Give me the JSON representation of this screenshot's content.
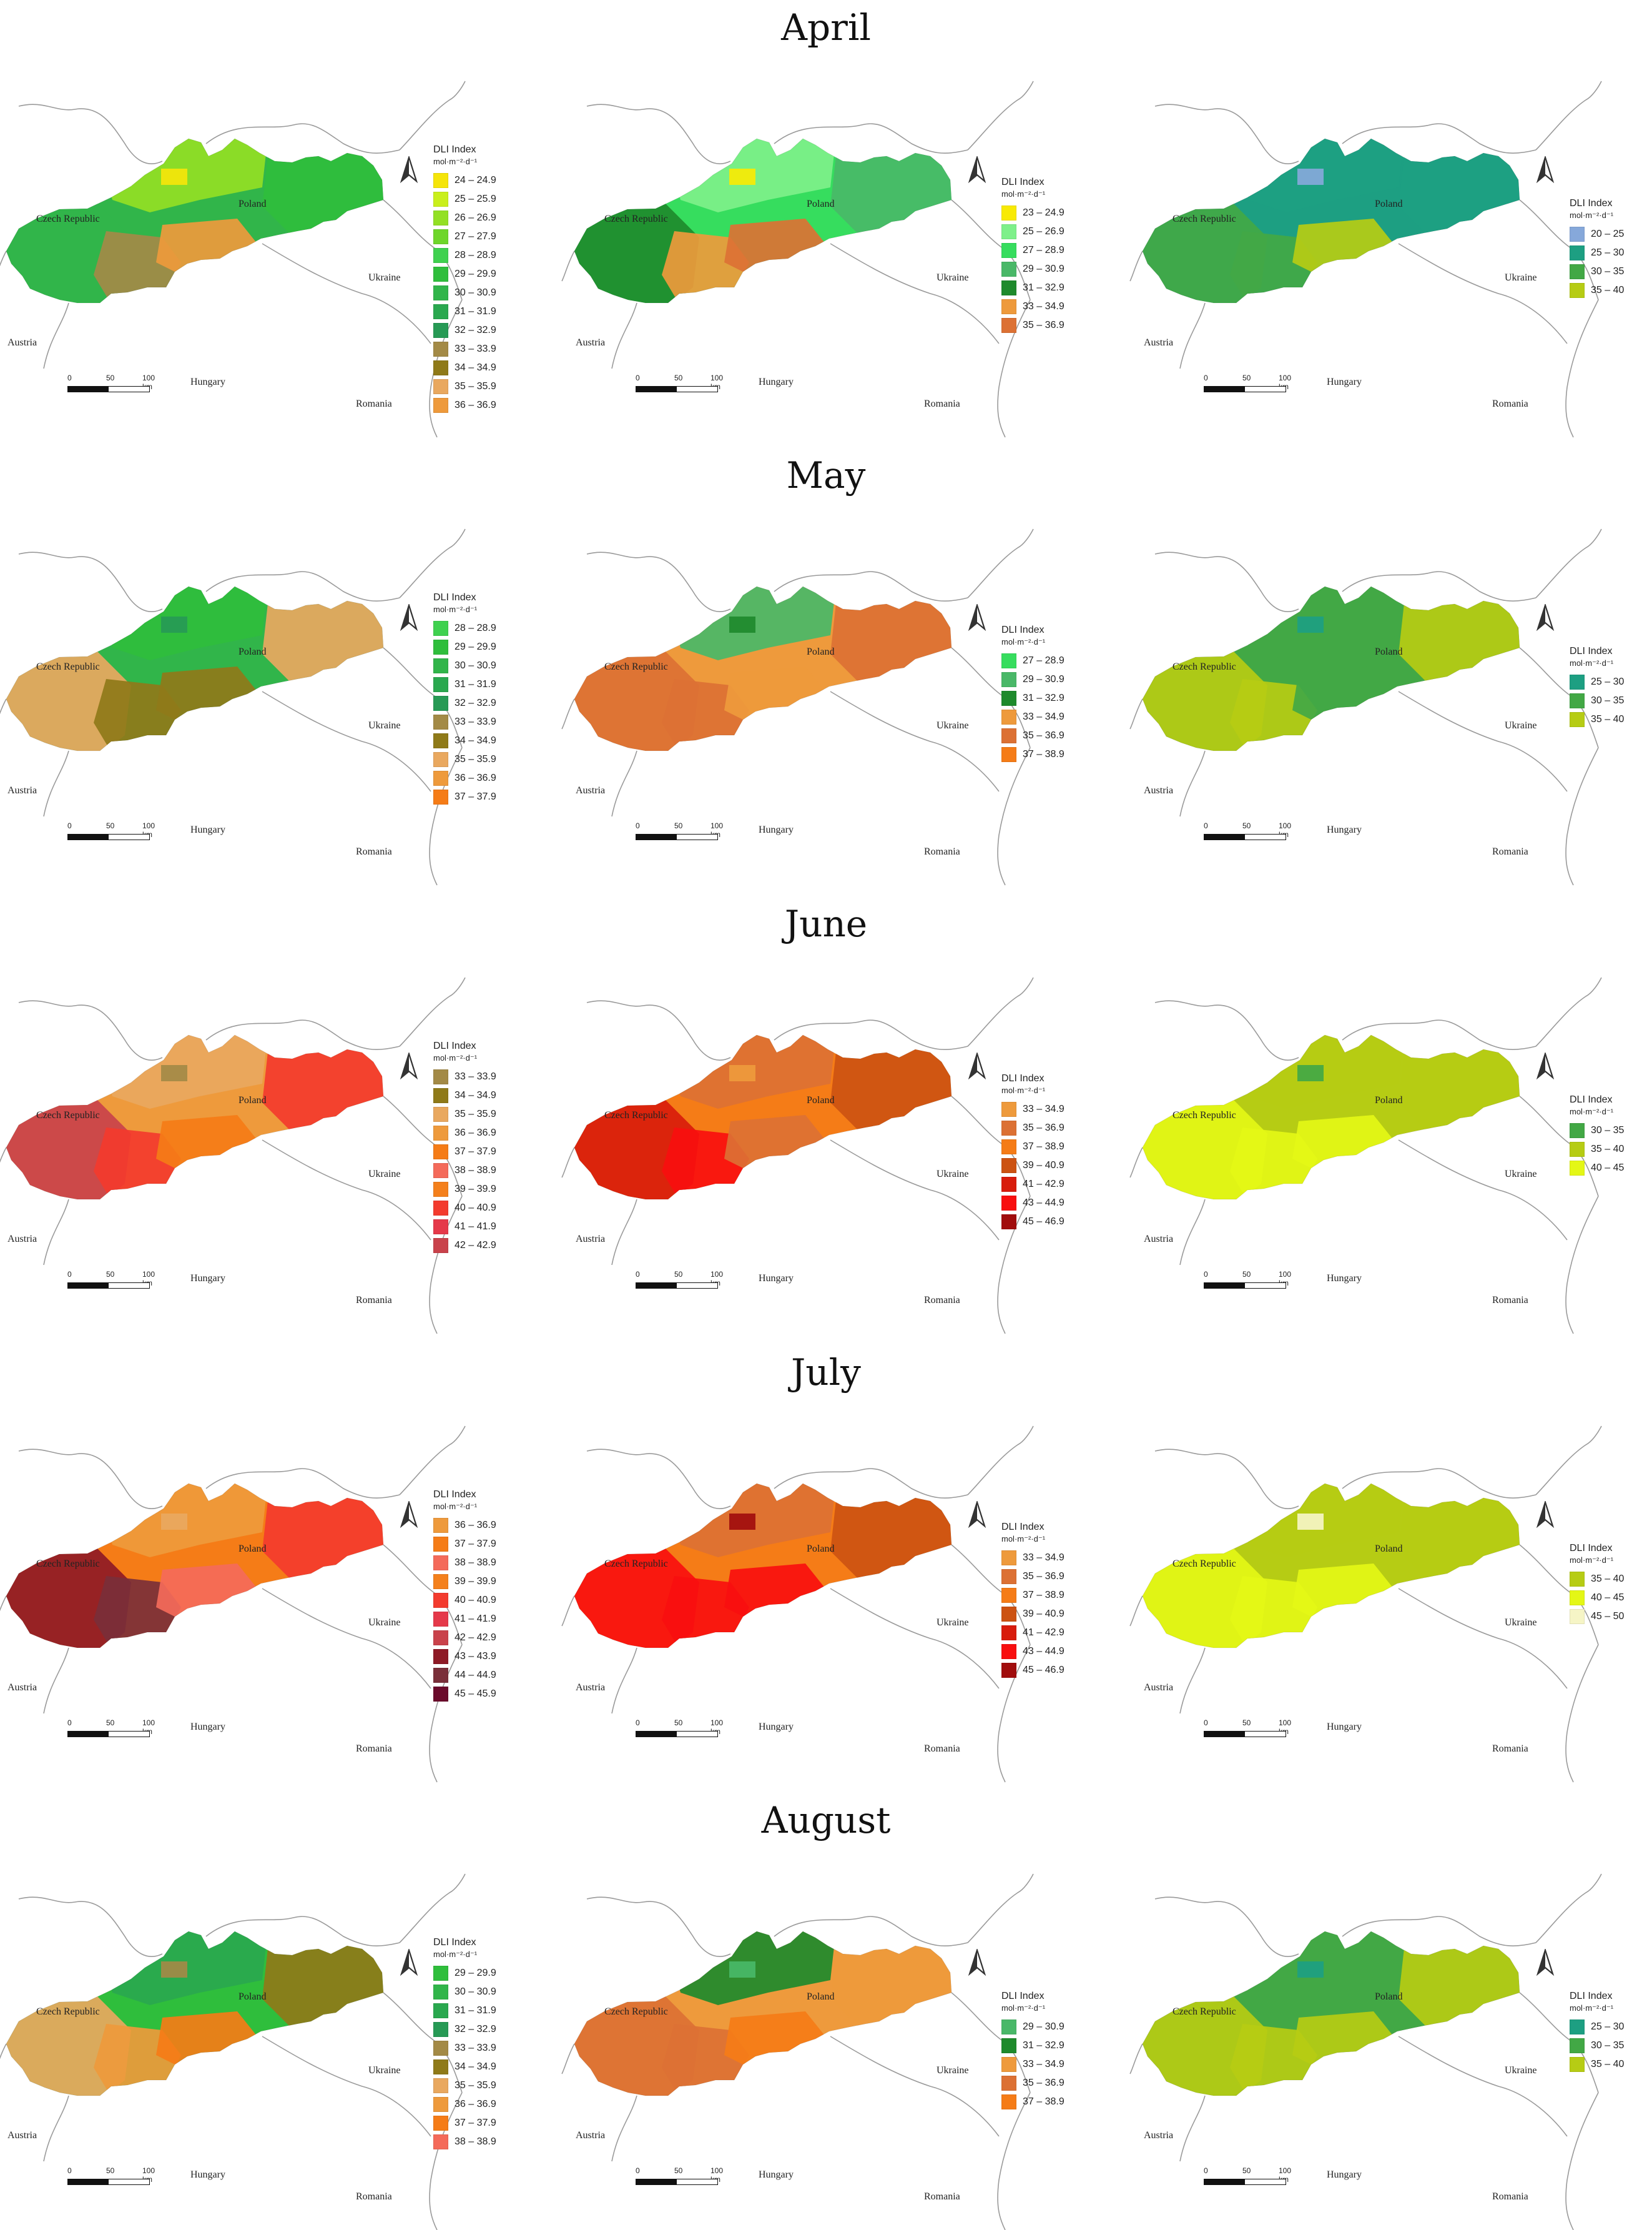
{
  "legend_title": "DLI Index",
  "legend_unit": "mol·m⁻²·d⁻¹",
  "place_labels": {
    "poland": "Poland",
    "czech": "Czech Republic",
    "ukraine": "Ukraine",
    "austria": "Austria",
    "hungary": "Hungary",
    "romania": "Romania"
  },
  "scale_labels": {
    "zero": "0",
    "fifty": "50",
    "hundred": "100 km"
  },
  "months": [
    {
      "title": "April",
      "panels": [
        {
          "legend": [
            {
              "label": "24 – 24.9",
              "color": "#f5e50a"
            },
            {
              "label": "25 – 25.9",
              "color": "#c9ef1c"
            },
            {
              "label": "26 – 26.9",
              "color": "#93e024"
            },
            {
              "label": "27 – 27.9",
              "color": "#6ed62a"
            },
            {
              "label": "28 – 28.9",
              "color": "#3fd14f"
            },
            {
              "label": "29 – 29.9",
              "color": "#2fbe3c"
            },
            {
              "label": "30 – 30.9",
              "color": "#31b54a"
            },
            {
              "label": "31 – 31.9",
              "color": "#2aa84f"
            },
            {
              "label": "32 – 32.9",
              "color": "#279a55"
            },
            {
              "label": "33 – 33.9",
              "color": "#a38a46"
            },
            {
              "label": "34 – 34.9",
              "color": "#8f7a19"
            },
            {
              "label": "35 – 35.9",
              "color": "#e9a85f"
            },
            {
              "label": "36 – 36.9",
              "color": "#ee9a3c"
            }
          ]
        },
        {
          "legend": [
            {
              "label": "23 – 24.9",
              "color": "#f8ea04"
            },
            {
              "label": "25 – 26.9",
              "color": "#7ef08a"
            },
            {
              "label": "27 – 28.9",
              "color": "#36dd5e"
            },
            {
              "label": "29 – 30.9",
              "color": "#49b868"
            },
            {
              "label": "31 – 32.9",
              "color": "#1e8a2c"
            },
            {
              "label": "33 – 34.9",
              "color": "#ee9a3c"
            },
            {
              "label": "35 – 36.9",
              "color": "#dc7134"
            }
          ]
        },
        {
          "legend": [
            {
              "label": "20 – 25",
              "color": "#86a8da"
            },
            {
              "label": "25 – 30",
              "color": "#1d9f82"
            },
            {
              "label": "30 – 35",
              "color": "#42a845"
            },
            {
              "label": "35 – 40",
              "color": "#b6cc14"
            }
          ]
        }
      ]
    },
    {
      "title": "May",
      "panels": [
        {
          "legend": [
            {
              "label": "28 – 28.9",
              "color": "#3fd14f"
            },
            {
              "label": "29 – 29.9",
              "color": "#2fbe3c"
            },
            {
              "label": "30 – 30.9",
              "color": "#31b54a"
            },
            {
              "label": "31 – 31.9",
              "color": "#2aa84f"
            },
            {
              "label": "32 – 32.9",
              "color": "#279a55"
            },
            {
              "label": "33 – 33.9",
              "color": "#a38a46"
            },
            {
              "label": "34 – 34.9",
              "color": "#8f7a19"
            },
            {
              "label": "35 – 35.9",
              "color": "#e9a85f"
            },
            {
              "label": "36 – 36.9",
              "color": "#ee9a3c"
            },
            {
              "label": "37 – 37.9",
              "color": "#f57c17"
            }
          ]
        },
        {
          "legend": [
            {
              "label": "27 – 28.9",
              "color": "#36dd5e"
            },
            {
              "label": "29 – 30.9",
              "color": "#49b868"
            },
            {
              "label": "31 – 32.9",
              "color": "#1e8a2c"
            },
            {
              "label": "33 – 34.9",
              "color": "#ee9a3c"
            },
            {
              "label": "35 – 36.9",
              "color": "#dc7134"
            },
            {
              "label": "37 – 38.9",
              "color": "#f57c17"
            }
          ]
        },
        {
          "legend": [
            {
              "label": "25 – 30",
              "color": "#1d9f82"
            },
            {
              "label": "30 – 35",
              "color": "#42a845"
            },
            {
              "label": "35 – 40",
              "color": "#b6cc14"
            }
          ]
        }
      ]
    },
    {
      "title": "June",
      "panels": [
        {
          "legend": [
            {
              "label": "33 – 33.9",
              "color": "#a38a46"
            },
            {
              "label": "34 – 34.9",
              "color": "#8f7a19"
            },
            {
              "label": "35 – 35.9",
              "color": "#e9a85f"
            },
            {
              "label": "36 – 36.9",
              "color": "#ee9a3c"
            },
            {
              "label": "37 – 37.9",
              "color": "#f57c17"
            },
            {
              "label": "38 – 38.9",
              "color": "#f46a5a"
            },
            {
              "label": "39 – 39.9",
              "color": "#f4801c"
            },
            {
              "label": "40 – 40.9",
              "color": "#f33b2e"
            },
            {
              "label": "41 – 41.9",
              "color": "#e5394a"
            },
            {
              "label": "42 – 42.9",
              "color": "#c9424b"
            }
          ]
        },
        {
          "legend": [
            {
              "label": "33 – 34.9",
              "color": "#ee9a3c"
            },
            {
              "label": "35 – 36.9",
              "color": "#dc7134"
            },
            {
              "label": "37 – 38.9",
              "color": "#f57c17"
            },
            {
              "label": "39 – 40.9",
              "color": "#cc5212"
            },
            {
              "label": "41 – 42.9",
              "color": "#d81c0c"
            },
            {
              "label": "43 – 44.9",
              "color": "#f80f0f"
            },
            {
              "label": "45 – 46.9",
              "color": "#a10d0d"
            }
          ]
        },
        {
          "legend": [
            {
              "label": "30 – 35",
              "color": "#42a845"
            },
            {
              "label": "35 – 40",
              "color": "#b6cc14"
            },
            {
              "label": "40 – 45",
              "color": "#e4f716"
            }
          ]
        }
      ]
    },
    {
      "title": "July",
      "panels": [
        {
          "legend": [
            {
              "label": "36 – 36.9",
              "color": "#ee9a3c"
            },
            {
              "label": "37 – 37.9",
              "color": "#f57c17"
            },
            {
              "label": "38 – 38.9",
              "color": "#f46a5a"
            },
            {
              "label": "39 – 39.9",
              "color": "#f4801c"
            },
            {
              "label": "40 – 40.9",
              "color": "#f33b2e"
            },
            {
              "label": "41 – 41.9",
              "color": "#e5394a"
            },
            {
              "label": "42 – 42.9",
              "color": "#c9424b"
            },
            {
              "label": "43 – 43.9",
              "color": "#8e1a26"
            },
            {
              "label": "44 – 44.9",
              "color": "#7a2f3a"
            },
            {
              "label": "45 – 45.9",
              "color": "#6b0a2b"
            }
          ]
        },
        {
          "legend": [
            {
              "label": "33 – 34.9",
              "color": "#ee9a3c"
            },
            {
              "label": "35 – 36.9",
              "color": "#dc7134"
            },
            {
              "label": "37 – 38.9",
              "color": "#f57c17"
            },
            {
              "label": "39 – 40.9",
              "color": "#cc5212"
            },
            {
              "label": "41 – 42.9",
              "color": "#d81c0c"
            },
            {
              "label": "43 – 44.9",
              "color": "#f80f0f"
            },
            {
              "label": "45 – 46.9",
              "color": "#a10d0d"
            }
          ]
        },
        {
          "legend": [
            {
              "label": "35 – 40",
              "color": "#b6cc14"
            },
            {
              "label": "40 – 45",
              "color": "#e4f716"
            },
            {
              "label": "45 – 50",
              "color": "#f6f5c6"
            }
          ]
        }
      ]
    },
    {
      "title": "August",
      "panels": [
        {
          "legend": [
            {
              "label": "29 – 29.9",
              "color": "#2fbe3c"
            },
            {
              "label": "30 – 30.9",
              "color": "#31b54a"
            },
            {
              "label": "31 – 31.9",
              "color": "#2aa84f"
            },
            {
              "label": "32 – 32.9",
              "color": "#279a55"
            },
            {
              "label": "33 – 33.9",
              "color": "#a38a46"
            },
            {
              "label": "34 – 34.9",
              "color": "#8f7a19"
            },
            {
              "label": "35 – 35.9",
              "color": "#e9a85f"
            },
            {
              "label": "36 – 36.9",
              "color": "#ee9a3c"
            },
            {
              "label": "37 – 37.9",
              "color": "#f57c17"
            },
            {
              "label": "38 – 38.9",
              "color": "#f46a5a"
            }
          ]
        },
        {
          "legend": [
            {
              "label": "29 – 30.9",
              "color": "#49b868"
            },
            {
              "label": "31 – 32.9",
              "color": "#1e8a2c"
            },
            {
              "label": "33 – 34.9",
              "color": "#ee9a3c"
            },
            {
              "label": "35 – 36.9",
              "color": "#dc7134"
            },
            {
              "label": "37 – 38.9",
              "color": "#f57c17"
            }
          ]
        },
        {
          "legend": [
            {
              "label": "25 – 30",
              "color": "#1d9f82"
            },
            {
              "label": "30 – 35",
              "color": "#42a845"
            },
            {
              "label": "35 – 40",
              "color": "#b6cc14"
            }
          ]
        }
      ]
    }
  ],
  "map_fills": [
    [
      {
        "base": "#31b54a",
        "west": "#31b54a",
        "north": "#93e024",
        "southwest": "#a38a46",
        "south": "#ee9a3c",
        "east": "#2fbe3c",
        "peak": "#f5e50a"
      },
      {
        "base": "#36dd5e",
        "west": "#1e8a2c",
        "north": "#7ef08a",
        "southwest": "#ee9a3c",
        "south": "#dc7134",
        "east": "#49b868",
        "peak": "#f8ea04"
      },
      {
        "base": "#1d9f82",
        "west": "#42a845",
        "north": "#1d9f82",
        "southwest": "#42a845",
        "south": "#b6cc14",
        "east": "#1d9f82",
        "peak": "#86a8da"
      }
    ],
    [
      {
        "base": "#31b54a",
        "west": "#e9a85f",
        "north": "#2fbe3c",
        "southwest": "#8f7a19",
        "south": "#8f7a19",
        "east": "#e9a85f",
        "peak": "#279a55"
      },
      {
        "base": "#ee9a3c",
        "west": "#dc7134",
        "north": "#49b868",
        "southwest": "#dc7134",
        "south": "#ee9a3c",
        "east": "#dc7134",
        "peak": "#1e8a2c"
      },
      {
        "base": "#42a845",
        "west": "#b6cc14",
        "north": "#42a845",
        "southwest": "#b6cc14",
        "south": "#42a845",
        "east": "#b6cc14",
        "peak": "#1d9f82"
      }
    ],
    [
      {
        "base": "#ee9a3c",
        "west": "#c9424b",
        "north": "#e9a85f",
        "southwest": "#f33b2e",
        "south": "#f57c17",
        "east": "#f33b2e",
        "peak": "#a38a46"
      },
      {
        "base": "#f57c17",
        "west": "#d81c0c",
        "north": "#dc7134",
        "southwest": "#f80f0f",
        "south": "#dc7134",
        "east": "#cc5212",
        "peak": "#ee9a3c"
      },
      {
        "base": "#b6cc14",
        "west": "#e4f716",
        "north": "#b6cc14",
        "southwest": "#e4f716",
        "south": "#e4f716",
        "east": "#b6cc14",
        "peak": "#42a845"
      }
    ],
    [
      {
        "base": "#f57c17",
        "west": "#8e1a26",
        "north": "#ee9a3c",
        "southwest": "#7a2f3a",
        "south": "#f46a5a",
        "east": "#f33b2e",
        "peak": "#e9a85f"
      },
      {
        "base": "#f57c17",
        "west": "#f80f0f",
        "north": "#dc7134",
        "southwest": "#f80f0f",
        "south": "#f80f0f",
        "east": "#cc5212",
        "peak": "#a10d0d"
      },
      {
        "base": "#b6cc14",
        "west": "#e4f716",
        "north": "#b6cc14",
        "southwest": "#e4f716",
        "south": "#e4f716",
        "east": "#b6cc14",
        "peak": "#f6f5c6"
      }
    ],
    [
      {
        "base": "#2fbe3c",
        "west": "#e9a85f",
        "north": "#2aa84f",
        "southwest": "#ee9a3c",
        "south": "#f57c17",
        "east": "#8f7a19",
        "peak": "#a38a46"
      },
      {
        "base": "#ee9a3c",
        "west": "#dc7134",
        "north": "#1e8a2c",
        "southwest": "#dc7134",
        "south": "#f57c17",
        "east": "#ee9a3c",
        "peak": "#49b868"
      },
      {
        "base": "#42a845",
        "west": "#b6cc14",
        "north": "#42a845",
        "southwest": "#b6cc14",
        "south": "#b6cc14",
        "east": "#b6cc14",
        "peak": "#1d9f82"
      }
    ]
  ]
}
